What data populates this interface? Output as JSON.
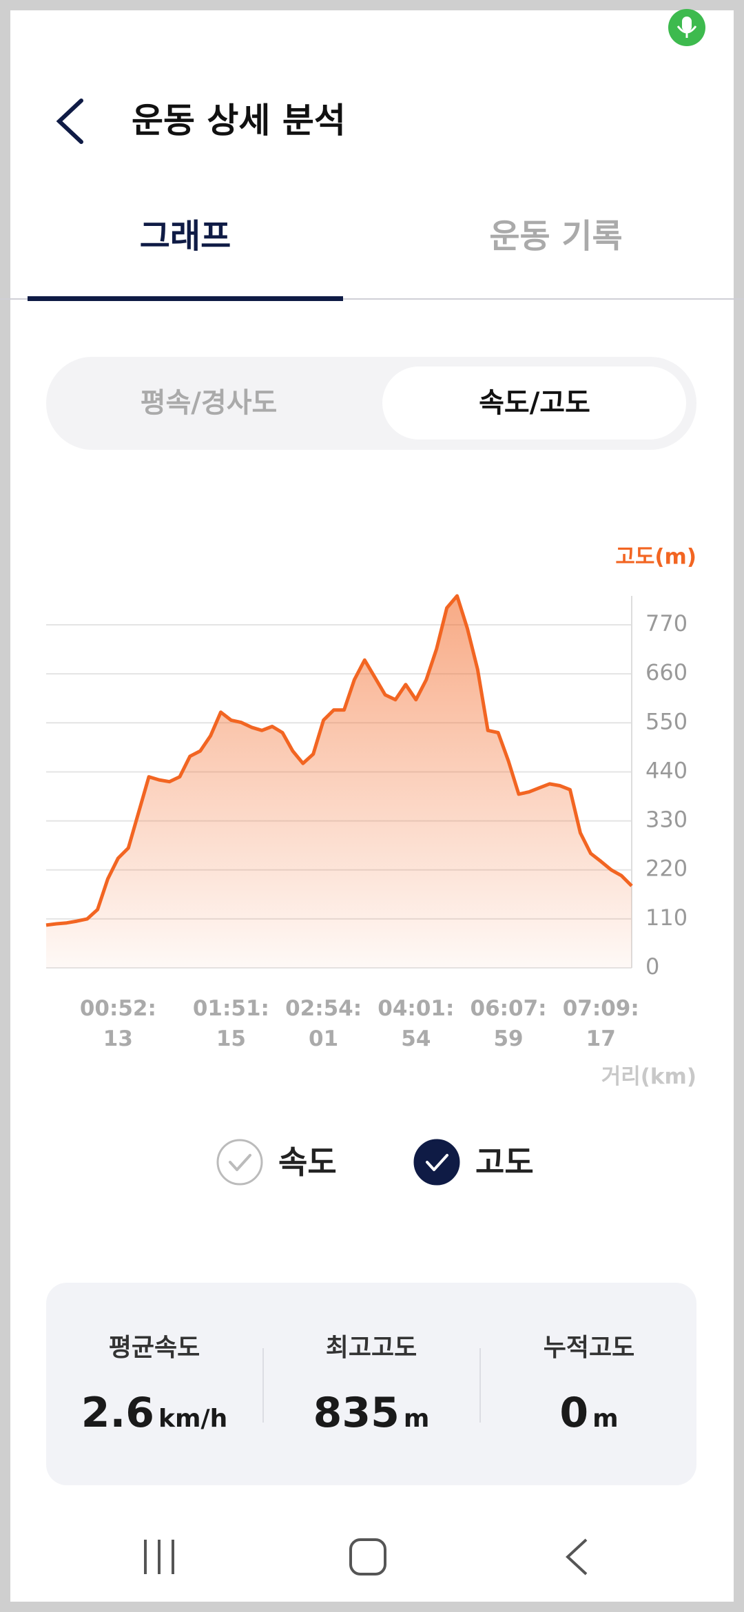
{
  "header": {
    "title": "운동 상세 분석"
  },
  "tabs": [
    "그래프",
    "운동 기록"
  ],
  "segments": [
    "평속/경사도",
    "속도/고도"
  ],
  "chart_data": {
    "type": "area",
    "y_axis_label": "고도(m)",
    "x_axis_label": "거리(km)",
    "categories": [
      null,
      null,
      null,
      null,
      null,
      null,
      null,
      "00:52:13",
      null,
      null,
      null,
      null,
      null,
      null,
      null,
      null,
      null,
      null,
      "01:51:15",
      null,
      null,
      null,
      null,
      null,
      null,
      null,
      null,
      "02:54:01",
      null,
      null,
      null,
      null,
      null,
      null,
      null,
      null,
      "04:01:54",
      null,
      null,
      null,
      null,
      null,
      null,
      null,
      null,
      "06:07:59",
      null,
      null,
      null,
      null,
      null,
      null,
      null,
      null,
      "07:09:17",
      null,
      null,
      null
    ],
    "values": [
      96,
      99,
      101,
      105,
      110,
      131,
      200,
      246,
      269,
      349,
      429,
      422,
      418,
      429,
      475,
      487,
      521,
      574,
      556,
      551,
      540,
      533,
      542,
      528,
      487,
      459,
      480,
      556,
      579,
      579,
      647,
      691,
      652,
      613,
      602,
      636,
      602,
      647,
      716,
      808,
      835,
      762,
      670,
      533,
      528,
      464,
      390,
      395,
      404,
      413,
      409,
      400,
      303,
      257,
      239,
      220,
      207,
      184
    ],
    "color": "#f26522",
    "ylim": [
      0,
      835
    ],
    "yticks": [
      0,
      110,
      220,
      330,
      440,
      550,
      660,
      770
    ],
    "grid": true
  },
  "toggles": [
    {
      "label": "속도",
      "checked": false
    },
    {
      "label": "고도",
      "checked": true
    }
  ],
  "stats": [
    {
      "label": "평균속도",
      "value": 2.6,
      "unit": "km/h"
    },
    {
      "label": "최고고도",
      "value": 835,
      "unit": "m"
    },
    {
      "label": "누적고도",
      "value": 0,
      "unit": "m"
    }
  ]
}
